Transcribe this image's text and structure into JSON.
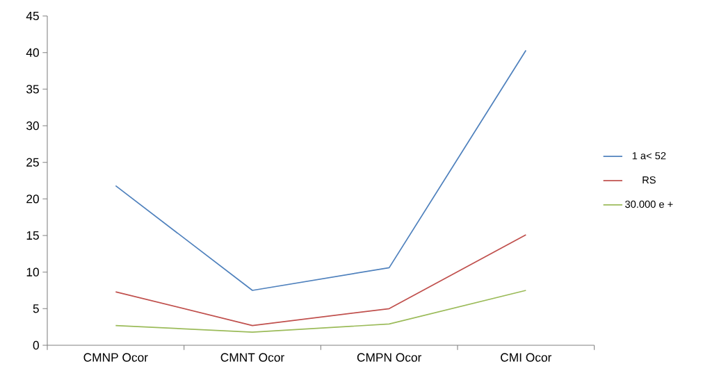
{
  "chart_data": {
    "type": "line",
    "categories": [
      "CMNP Ocor",
      "CMNT Ocor",
      "CMPN Ocor",
      "CMI Ocor"
    ],
    "series": [
      {
        "name": "1 a< 52",
        "color": "#4f81bd",
        "values": [
          21.8,
          7.5,
          10.6,
          40.3
        ]
      },
      {
        "name": "RS",
        "color": "#c0504d",
        "values": [
          7.3,
          2.7,
          5.0,
          15.1
        ]
      },
      {
        "name": "30.000 e +",
        "color": "#9bbb59",
        "values": [
          2.7,
          1.8,
          2.9,
          7.5
        ]
      }
    ],
    "ylim": [
      0,
      45
    ],
    "yticks": [
      0,
      5,
      10,
      15,
      20,
      25,
      30,
      35,
      40,
      45
    ],
    "legend": "right",
    "grid": false,
    "marker": "none",
    "line_style": "solid"
  }
}
